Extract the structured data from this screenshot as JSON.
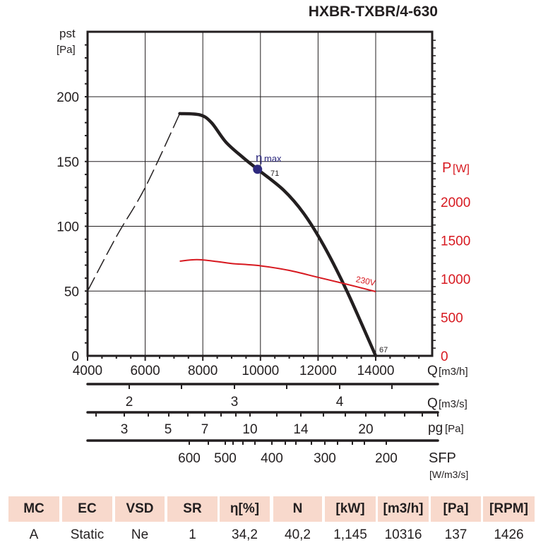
{
  "title": "HXBR-TXBR/4-630",
  "chart_data": {
    "type": "line",
    "title": "HXBR-TXBR/4-630",
    "ylabel": "pst",
    "ylabel_unit": "[Pa]",
    "y2label": "P",
    "y2label_unit": "[W]",
    "xlabel": "Q",
    "xlabel_unit": "[m3/h]",
    "xlim": [
      4000,
      16000
    ],
    "ylim": [
      0,
      250
    ],
    "y2lim": [
      0,
      4190
    ],
    "xticks": [
      "4000",
      "6000",
      "8000",
      "10000",
      "12000",
      "14000"
    ],
    "xtick_values": [
      4000,
      6000,
      8000,
      10000,
      12000,
      14000
    ],
    "yticks": [
      "0",
      "50",
      "100",
      "150",
      "200"
    ],
    "ytick_values": [
      0,
      50,
      100,
      150,
      200
    ],
    "y2ticks": [
      "0",
      "500",
      "1000",
      "1500",
      "2000"
    ],
    "y2tick_values": [
      0,
      500,
      1000,
      1500,
      2000
    ],
    "grid": true,
    "series": [
      {
        "name": "pressure (unstable region)",
        "style": "dashed",
        "color": "#231f20",
        "x": [
          4000,
          5000,
          6000,
          7200
        ],
        "y": [
          50,
          92,
          130,
          187
        ]
      },
      {
        "name": "pressure",
        "style": "solid",
        "color": "#231f20",
        "x": [
          7200,
          7900,
          8300,
          8800,
          9400,
          9900,
          10800,
          11500,
          12200,
          13000,
          14000
        ],
        "y": [
          187,
          186,
          180,
          165,
          153,
          144,
          128,
          110,
          85,
          50,
          0
        ]
      },
      {
        "name": "230V",
        "axis": "right",
        "style": "solid",
        "color": "#d71920",
        "x": [
          7200,
          7800,
          8500,
          9000,
          10000,
          11000,
          12000,
          13000,
          14000
        ],
        "y": [
          1230,
          1250,
          1225,
          1200,
          1170,
          1110,
          1020,
          930,
          835
        ]
      }
    ],
    "annotations": {
      "eta_max": {
        "label": "η",
        "sub": "max",
        "x": 9900,
        "y": 144,
        "value": "71",
        "color": "#2e2a7e"
      },
      "end_point": {
        "x": 14000,
        "y": 0,
        "value": "67"
      },
      "power_label": "230V"
    },
    "secondary_scales": [
      {
        "label": "Q",
        "unit": "[m3/s]",
        "ticks": [
          "2",
          "3",
          "4"
        ],
        "tick_values": [
          2,
          3,
          4
        ]
      },
      {
        "label": "pg",
        "unit": "[Pa]",
        "ticks": [
          "3",
          "5",
          "7",
          "10",
          "14",
          "20"
        ],
        "tick_values": [
          3,
          5,
          7,
          10,
          14,
          20
        ]
      },
      {
        "label": "SFP",
        "unit": "[W/m3/s]",
        "ticks": [
          "600",
          "500",
          "400",
          "300",
          "200"
        ],
        "tick_values": [
          600,
          500,
          400,
          300,
          200
        ]
      }
    ]
  },
  "table": {
    "headers": [
      "MC",
      "EC",
      "VSD",
      "SR",
      "η[%]",
      "N",
      "[kW]",
      "[m3/h]",
      "[Pa]",
      "[RPM]"
    ],
    "values": [
      "A",
      "Static",
      "Ne",
      "1",
      "34,2",
      "40,2",
      "1,145",
      "10316",
      "137",
      "1426"
    ]
  }
}
